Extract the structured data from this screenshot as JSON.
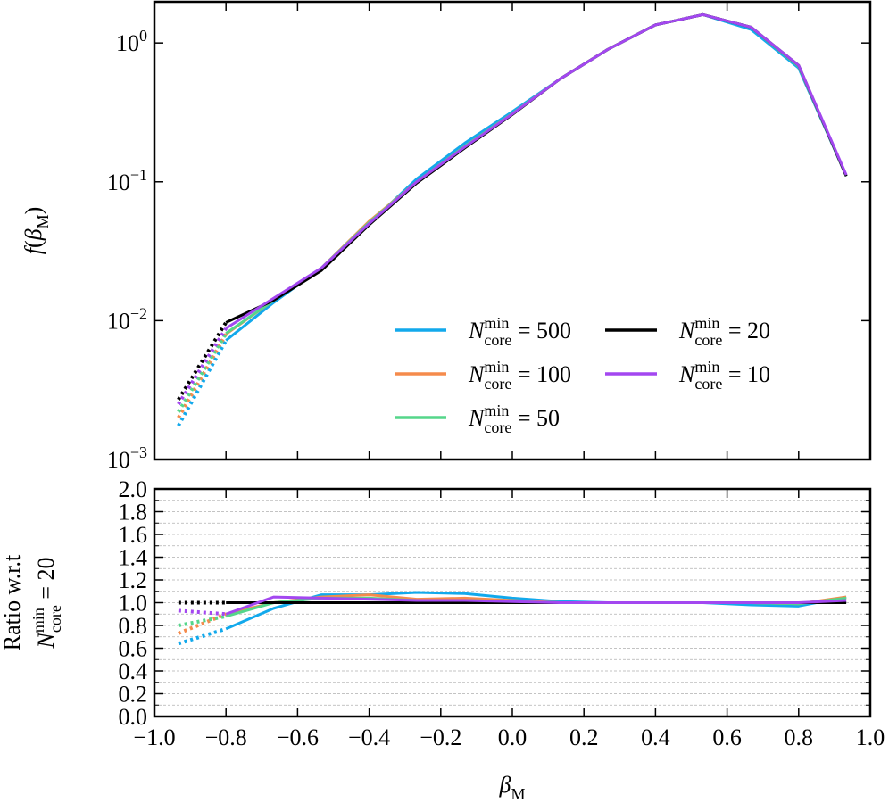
{
  "chart_data": [
    {
      "type": "line",
      "log_y": true,
      "ylabel": "f(β_M)",
      "x": [
        -0.933,
        -0.8,
        -0.667,
        -0.533,
        -0.4,
        -0.267,
        -0.133,
        0,
        0.133,
        0.267,
        0.4,
        0.533,
        0.667,
        0.8,
        0.933
      ],
      "dotted_segments": [
        0
      ],
      "series": [
        {
          "name": "N_core^min = 500",
          "color": "#12a9ec",
          "values": [
            0.00175,
            0.0072,
            0.0135,
            0.024,
            0.05,
            0.105,
            0.19,
            0.32,
            0.55,
            0.9,
            1.35,
            1.6,
            1.25,
            0.66,
            0.11
          ]
        },
        {
          "name": "N_core^min = 100",
          "color": "#f58b4c",
          "values": [
            0.002,
            0.008,
            0.014,
            0.024,
            0.052,
            0.1,
            0.18,
            0.31,
            0.55,
            0.9,
            1.35,
            1.6,
            1.3,
            0.68,
            0.11
          ]
        },
        {
          "name": "N_core^min = 50",
          "color": "#55d68a",
          "values": [
            0.0022,
            0.0081,
            0.014,
            0.024,
            0.051,
            0.1,
            0.18,
            0.31,
            0.55,
            0.9,
            1.35,
            1.6,
            1.3,
            0.68,
            0.11
          ]
        },
        {
          "name": "N_core^min = 20",
          "color": "#000000",
          "values": [
            0.0027,
            0.0097,
            0.014,
            0.023,
            0.049,
            0.098,
            0.175,
            0.305,
            0.55,
            0.9,
            1.35,
            1.6,
            1.3,
            0.69,
            0.11
          ]
        },
        {
          "name": "N_core^min = 10",
          "color": "#a347f0",
          "values": [
            0.0025,
            0.0088,
            0.0145,
            0.024,
            0.05,
            0.1,
            0.178,
            0.308,
            0.55,
            0.9,
            1.35,
            1.6,
            1.3,
            0.69,
            0.112
          ]
        }
      ],
      "legend_loc": "lower right",
      "legend_ncol": 2,
      "xlim": [
        -1,
        1
      ],
      "xticks": [
        -1,
        -0.8,
        -0.6,
        -0.4,
        -0.2,
        0,
        0.2,
        0.4,
        0.6,
        0.8,
        1
      ],
      "ylim": [
        0.001,
        1.98
      ],
      "yticks": [
        {
          "value": 0.001,
          "label": "10^−3"
        },
        {
          "value": 0.01,
          "label": "10^−2"
        },
        {
          "value": 0.1,
          "label": "10^−1"
        },
        {
          "value": 1,
          "label": "10^0"
        }
      ]
    },
    {
      "type": "line",
      "xlabel": "β_M",
      "ylabel": [
        "Ratio w.r.t",
        "N_core^min = 20"
      ],
      "x": [
        -0.933,
        -0.8,
        -0.667,
        -0.533,
        -0.4,
        -0.267,
        -0.133,
        0,
        0.133,
        0.267,
        0.4,
        0.533,
        0.667,
        0.8,
        0.933
      ],
      "dotted_segments": [
        0
      ],
      "series": [
        {
          "name": "N_core^min = 500",
          "color": "#12a9ec",
          "values": [
            0.64,
            0.77,
            0.95,
            1.07,
            1.07,
            1.09,
            1.08,
            1.04,
            1.01,
            1.0,
            1.0,
            1.0,
            0.98,
            0.97,
            1.05
          ]
        },
        {
          "name": "N_core^min = 100",
          "color": "#f58b4c",
          "values": [
            0.73,
            0.9,
            1.0,
            1.05,
            1.07,
            1.03,
            1.04,
            1.02,
            1.0,
            1.0,
            1.0,
            1.0,
            1.0,
            0.99,
            1.05
          ]
        },
        {
          "name": "N_core^min = 50",
          "color": "#55d68a",
          "values": [
            0.8,
            0.88,
            1.0,
            1.04,
            1.04,
            1.02,
            1.02,
            1.01,
            1.0,
            1.0,
            1.0,
            1.0,
            1.0,
            0.99,
            1.04
          ]
        },
        {
          "name": "N_core^min = 20",
          "color": "#000000",
          "values": [
            1.0,
            1.0,
            1.0,
            1.0,
            1.0,
            1.0,
            1.0,
            1.0,
            1.0,
            1.0,
            1.0,
            1.0,
            1.0,
            1.0,
            1.0
          ]
        },
        {
          "name": "N_core^min = 10",
          "color": "#a347f0",
          "values": [
            0.93,
            0.9,
            1.05,
            1.04,
            1.03,
            1.02,
            1.02,
            1.01,
            1.0,
            1.0,
            1.0,
            1.0,
            1.0,
            1.0,
            1.02
          ]
        }
      ],
      "xlim": [
        -1,
        1
      ],
      "xticks": [
        {
          "value": -1,
          "label": "−1.0"
        },
        {
          "value": -0.8,
          "label": "−0.8"
        },
        {
          "value": -0.6,
          "label": "−0.6"
        },
        {
          "value": -0.4,
          "label": "−0.4"
        },
        {
          "value": -0.2,
          "label": "−0.2"
        },
        {
          "value": 0,
          "label": "0.0"
        },
        0.2,
        0.4,
        0.6,
        0.8,
        {
          "value": 1,
          "label": "1.0"
        }
      ],
      "ylim": [
        0,
        2
      ],
      "yticks": [
        {
          "value": 0,
          "label": "0.0"
        },
        0.2,
        0.4,
        0.6,
        0.8,
        {
          "value": 1,
          "label": "1.0"
        },
        1.2,
        1.4,
        1.6,
        1.8,
        {
          "value": 2,
          "label": "2.0"
        }
      ],
      "yminor_ticks": [
        0.1,
        0.3,
        0.5,
        0.7,
        0.9,
        1.1,
        1.3,
        1.5,
        1.7,
        1.9
      ],
      "grid": true
    }
  ]
}
